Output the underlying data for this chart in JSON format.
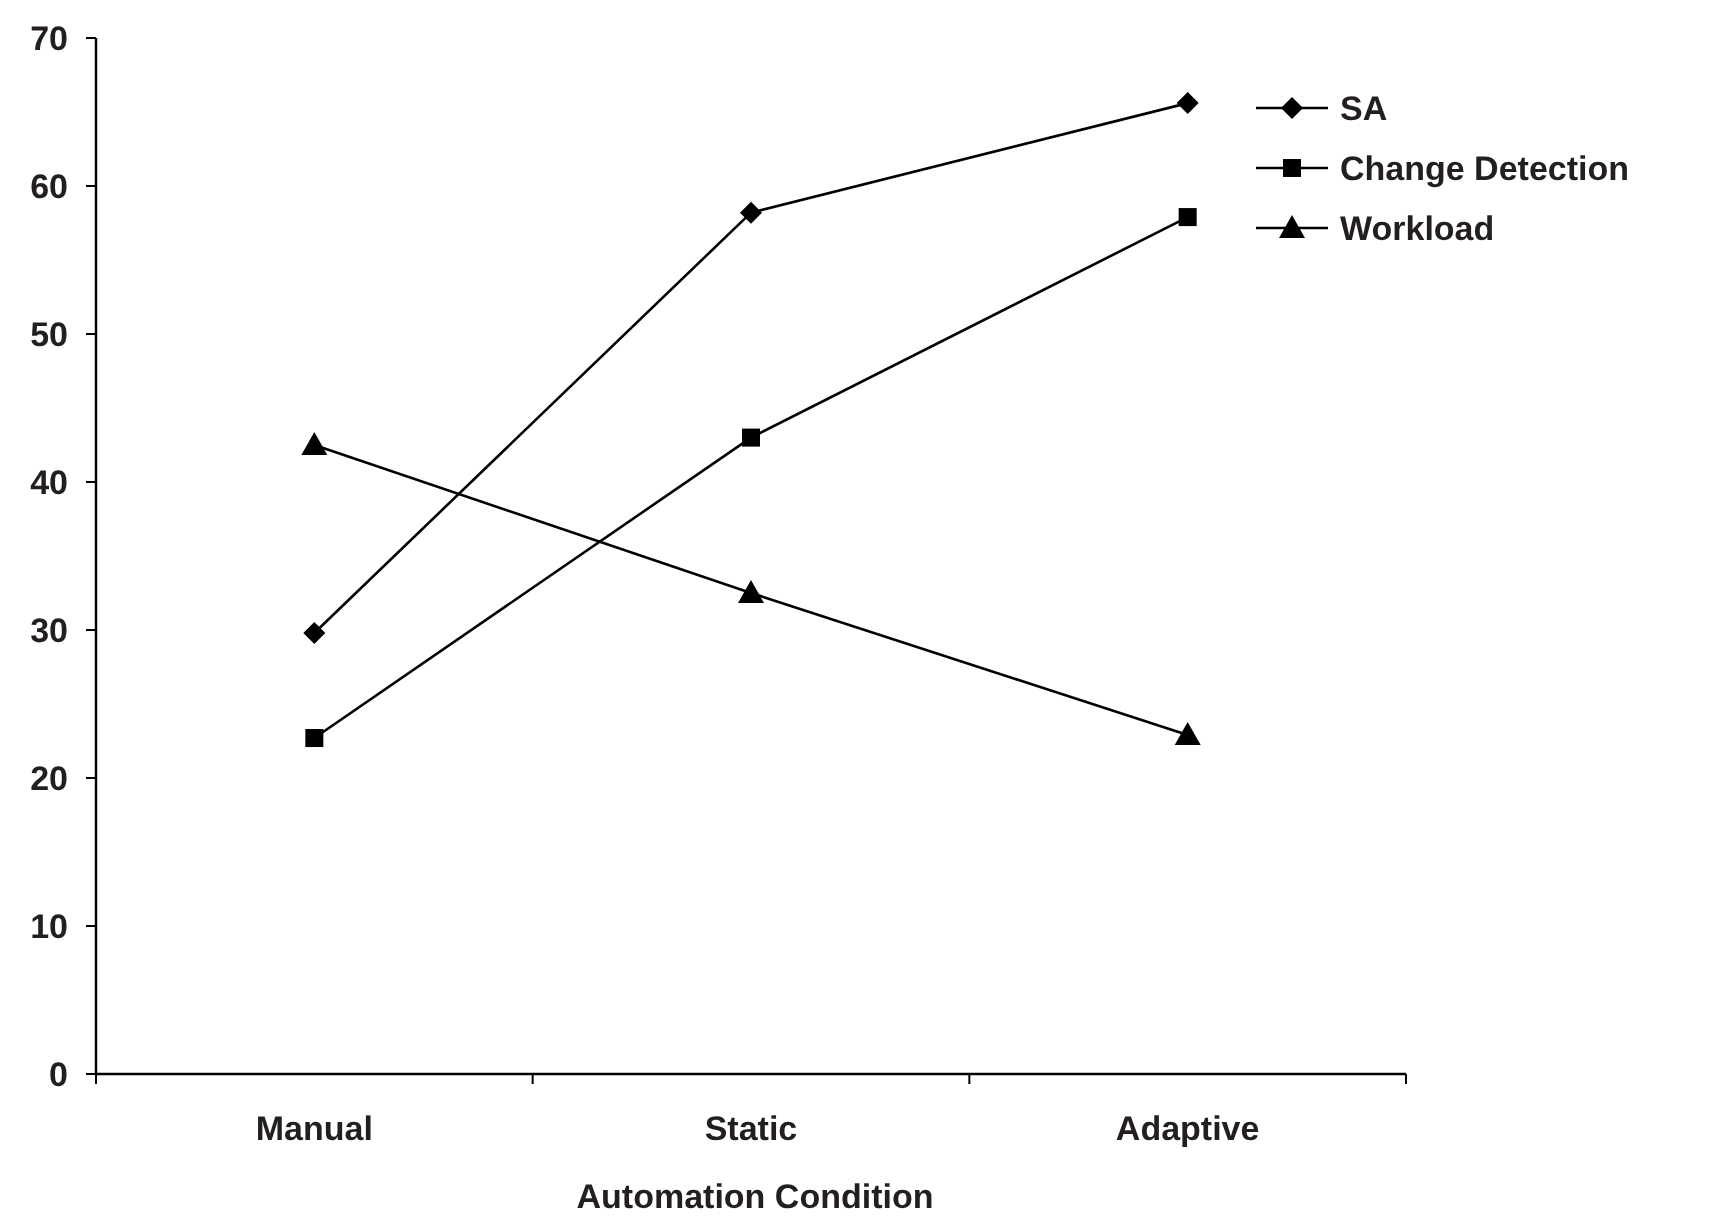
{
  "chart_data": {
    "type": "line",
    "xlabel": "Automation Condition",
    "categories": [
      "Manual",
      "Static",
      "Adaptive"
    ],
    "series": [
      {
        "name": "SA",
        "color": "#000000",
        "marker": "diamond",
        "values": [
          29.8,
          58.2,
          65.6
        ]
      },
      {
        "name": "Change Detection",
        "color": "#000000",
        "marker": "square",
        "values": [
          22.7,
          43.0,
          57.9
        ]
      },
      {
        "name": "Workload",
        "color": "#000000",
        "marker": "triangle",
        "values": [
          42.5,
          32.5,
          22.9
        ]
      }
    ],
    "ylim": [
      0,
      70
    ],
    "yticks": [
      0,
      10,
      20,
      30,
      40,
      50,
      60,
      70
    ],
    "grid": false,
    "legend": "top right",
    "line_style": "solid"
  }
}
